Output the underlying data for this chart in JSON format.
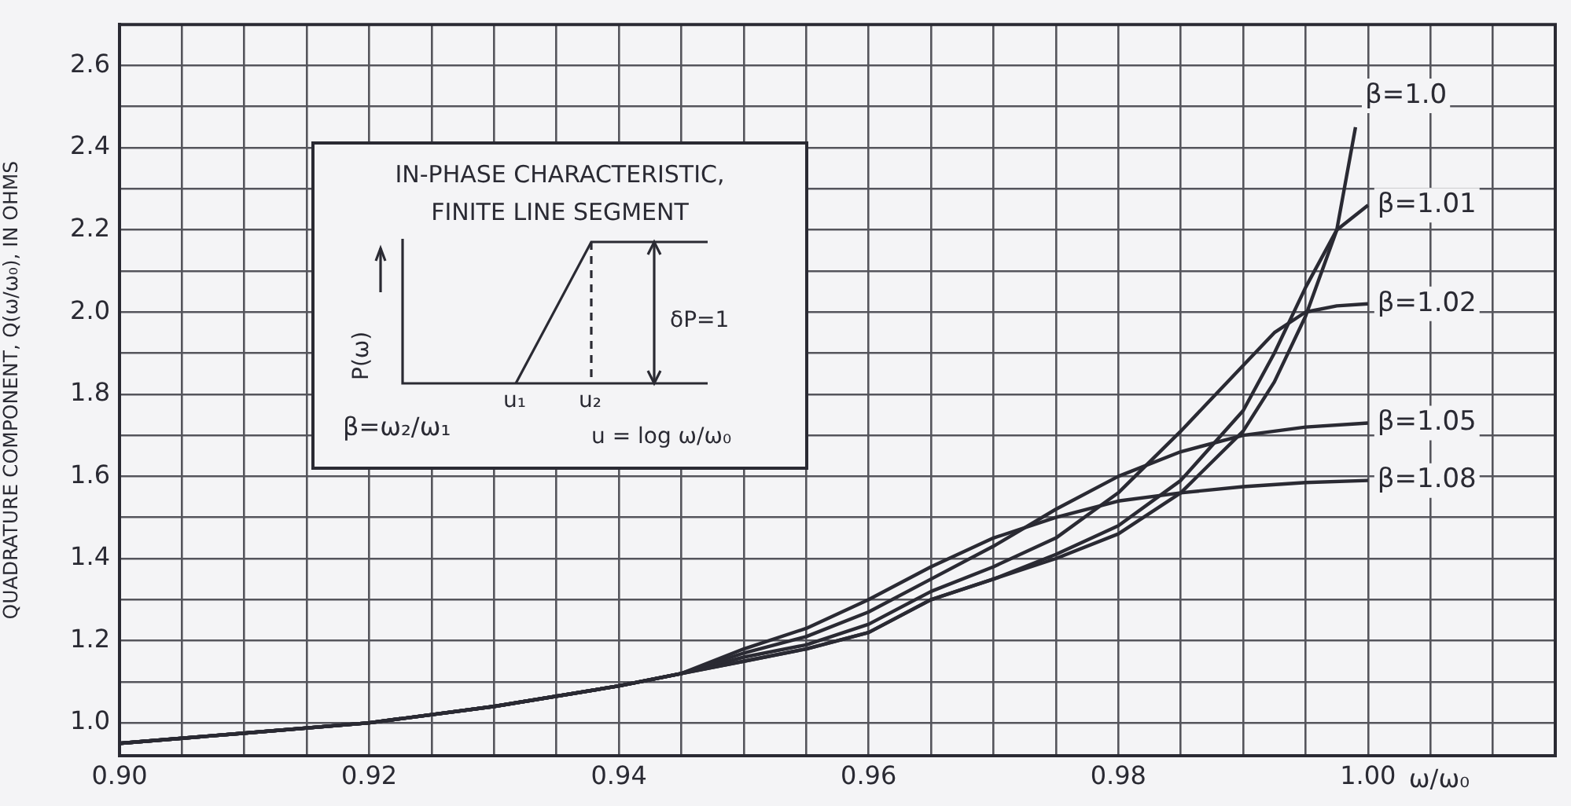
{
  "chart_data": {
    "type": "line",
    "xlabel": "ω/ω₀",
    "ylabel": "QUADRATURE COMPONENT, Q(ω/ω₀), IN OHMS",
    "xlim": [
      0.9,
      1.015
    ],
    "ylim": [
      0.92,
      2.7
    ],
    "xticks": [
      {
        "value": 0.9,
        "label": "0.90"
      },
      {
        "value": 0.905,
        "label": null
      },
      {
        "value": 0.91,
        "label": null
      },
      {
        "value": 0.915,
        "label": null
      },
      {
        "value": 0.92,
        "label": "0.92"
      },
      {
        "value": 0.925,
        "label": null
      },
      {
        "value": 0.93,
        "label": null
      },
      {
        "value": 0.935,
        "label": null
      },
      {
        "value": 0.94,
        "label": "0.94"
      },
      {
        "value": 0.945,
        "label": null
      },
      {
        "value": 0.95,
        "label": null
      },
      {
        "value": 0.955,
        "label": null
      },
      {
        "value": 0.96,
        "label": "0.96"
      },
      {
        "value": 0.965,
        "label": null
      },
      {
        "value": 0.97,
        "label": null
      },
      {
        "value": 0.975,
        "label": null
      },
      {
        "value": 0.98,
        "label": "0.98"
      },
      {
        "value": 0.985,
        "label": null
      },
      {
        "value": 0.99,
        "label": null
      },
      {
        "value": 0.995,
        "label": null
      },
      {
        "value": 1.0,
        "label": "1.00"
      },
      {
        "value": 1.005,
        "label": null
      },
      {
        "value": 1.01,
        "label": null
      }
    ],
    "yticks": [
      {
        "value": 1.0,
        "label": "1.0"
      },
      {
        "value": 1.1,
        "label": null
      },
      {
        "value": 1.2,
        "label": "1.2"
      },
      {
        "value": 1.3,
        "label": null
      },
      {
        "value": 1.4,
        "label": "1.4"
      },
      {
        "value": 1.5,
        "label": null
      },
      {
        "value": 1.6,
        "label": "1.6"
      },
      {
        "value": 1.7,
        "label": null
      },
      {
        "value": 1.8,
        "label": "1.8"
      },
      {
        "value": 1.9,
        "label": null
      },
      {
        "value": 2.0,
        "label": "2.0"
      },
      {
        "value": 2.1,
        "label": null
      },
      {
        "value": 2.2,
        "label": "2.2"
      },
      {
        "value": 2.3,
        "label": null
      },
      {
        "value": 2.4,
        "label": "2.4"
      },
      {
        "value": 2.5,
        "label": null
      },
      {
        "value": 2.6,
        "label": "2.6"
      }
    ],
    "grid": true,
    "legend": false,
    "marker": "none",
    "line_style": "solid",
    "series": [
      {
        "name": "β=1.0",
        "color": "#2a2a33",
        "x": [
          0.9,
          0.91,
          0.92,
          0.93,
          0.94,
          0.945,
          0.95,
          0.955,
          0.96,
          0.965,
          0.97,
          0.975,
          0.98,
          0.985,
          0.99,
          0.9925,
          0.995,
          0.9975,
          0.999
        ],
        "values": [
          0.95,
          0.975,
          1.0,
          1.04,
          1.09,
          1.12,
          1.15,
          1.18,
          1.22,
          1.3,
          1.35,
          1.4,
          1.46,
          1.56,
          1.71,
          1.83,
          1.99,
          2.2,
          2.45
        ]
      },
      {
        "name": "β=1.01",
        "color": "#2a2a33",
        "x": [
          0.9,
          0.91,
          0.92,
          0.93,
          0.94,
          0.945,
          0.95,
          0.955,
          0.96,
          0.965,
          0.97,
          0.975,
          0.98,
          0.985,
          0.99,
          0.9925,
          0.995,
          0.9975,
          1.0
        ],
        "values": [
          0.95,
          0.975,
          1.0,
          1.04,
          1.09,
          1.12,
          1.15,
          1.18,
          1.22,
          1.3,
          1.35,
          1.41,
          1.48,
          1.59,
          1.76,
          1.9,
          2.06,
          2.2,
          2.26
        ]
      },
      {
        "name": "β=1.02",
        "color": "#2a2a33",
        "x": [
          0.9,
          0.91,
          0.92,
          0.93,
          0.94,
          0.945,
          0.95,
          0.955,
          0.96,
          0.965,
          0.97,
          0.975,
          0.98,
          0.985,
          0.99,
          0.9925,
          0.995,
          0.9975,
          1.0
        ],
        "values": [
          0.95,
          0.975,
          1.0,
          1.04,
          1.09,
          1.12,
          1.16,
          1.19,
          1.24,
          1.32,
          1.38,
          1.45,
          1.56,
          1.71,
          1.87,
          1.95,
          2.0,
          2.015,
          2.02
        ]
      },
      {
        "name": "β=1.05",
        "color": "#2a2a33",
        "x": [
          0.9,
          0.91,
          0.92,
          0.93,
          0.94,
          0.945,
          0.95,
          0.955,
          0.96,
          0.965,
          0.97,
          0.975,
          0.98,
          0.985,
          0.99,
          0.995,
          1.0
        ],
        "values": [
          0.95,
          0.975,
          1.0,
          1.04,
          1.09,
          1.12,
          1.17,
          1.21,
          1.27,
          1.35,
          1.43,
          1.52,
          1.6,
          1.66,
          1.7,
          1.72,
          1.73
        ]
      },
      {
        "name": "β=1.08",
        "color": "#2a2a33",
        "x": [
          0.9,
          0.91,
          0.92,
          0.93,
          0.94,
          0.945,
          0.95,
          0.955,
          0.96,
          0.965,
          0.97,
          0.975,
          0.98,
          0.985,
          0.99,
          0.995,
          1.0
        ],
        "values": [
          0.95,
          0.975,
          1.0,
          1.04,
          1.09,
          1.12,
          1.18,
          1.23,
          1.3,
          1.38,
          1.45,
          1.5,
          1.54,
          1.56,
          1.575,
          1.585,
          1.59
        ]
      }
    ],
    "annotations": [
      "IN-PHASE CHARACTERISTIC,",
      "FINITE LINE SEGMENT",
      "P(ω)",
      "u₁",
      "u₂",
      "δP=1",
      "β=ω₂/ω₁",
      "u = log ω/ω₀"
    ]
  }
}
